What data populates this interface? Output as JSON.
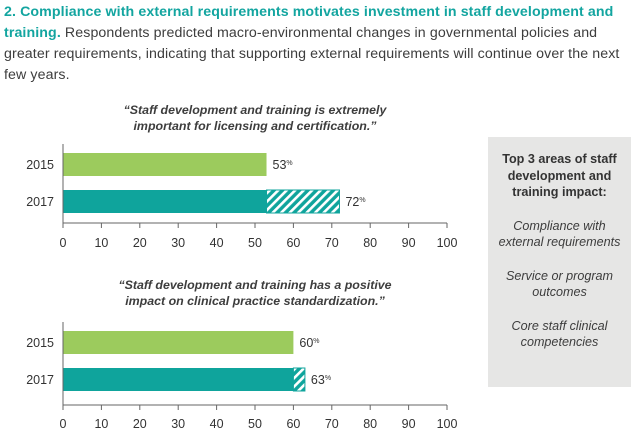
{
  "intro": {
    "heading": "2. Compliance with external requirements motivates investment in staff development and training.",
    "body": " Respondents predicted macro-environmental changes in governmental policies and greater requirements, indicating that supporting external requirements will continue over the next few years."
  },
  "sidebar": {
    "title": "Top 3 areas of staff development and training impact:",
    "items": [
      "Compliance with external requirements",
      "Service or program outcomes",
      "Core staff clinical competencies"
    ]
  },
  "colors": {
    "heading": "#13a5a0",
    "bar_2015": "#9ccb5d",
    "bar_2017": "#0fa49c",
    "sidebar_bg": "#e6e6e5"
  },
  "chart_data": [
    {
      "type": "bar",
      "orientation": "horizontal",
      "title": "“Staff development and training is extremely important for licensing and certification.”",
      "title_lines": [
        "“Staff development and training is extremely",
        "important for licensing and certification.”"
      ],
      "categories": [
        "2015",
        "2017"
      ],
      "values": [
        53,
        72
      ],
      "value_labels": [
        "53",
        "72"
      ],
      "value_unit": "%",
      "hatched_increase": {
        "category": "2017",
        "from": 53,
        "to": 72
      },
      "xlim": [
        0,
        100
      ],
      "xticks": [
        0,
        10,
        20,
        30,
        40,
        50,
        60,
        70,
        80,
        90,
        100
      ],
      "colors": [
        "#9ccb5d",
        "#0fa49c"
      ]
    },
    {
      "type": "bar",
      "orientation": "horizontal",
      "title": "“Staff development and training has a positive impact on clinical practice standardization.”",
      "title_lines": [
        "“Staff development and training has a positive",
        "impact on clinical practice standardization.”"
      ],
      "categories": [
        "2015",
        "2017"
      ],
      "values": [
        60,
        63
      ],
      "value_labels": [
        "60",
        "63"
      ],
      "value_unit": "%",
      "hatched_increase": {
        "category": "2017",
        "from": 60,
        "to": 63
      },
      "xlim": [
        0,
        100
      ],
      "xticks": [
        0,
        10,
        20,
        30,
        40,
        50,
        60,
        70,
        80,
        90,
        100
      ],
      "colors": [
        "#9ccb5d",
        "#0fa49c"
      ]
    }
  ]
}
